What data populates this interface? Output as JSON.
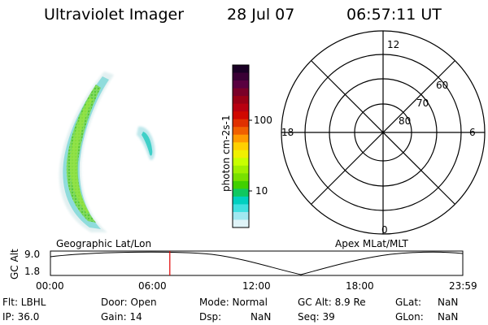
{
  "header": {
    "title": "Ultraviolet Imager",
    "date": "28 Jul 07",
    "time": "06:57:11 UT"
  },
  "colorbar": {
    "label": "photon cm-2s-1",
    "ticks": [
      "100",
      "10"
    ],
    "colors": [
      "#1a0025",
      "#3a0035",
      "#5a0040",
      "#7a0028",
      "#9a0015",
      "#b80010",
      "#d00800",
      "#e03000",
      "#f06000",
      "#ff9a00",
      "#ffd000",
      "#f0f000",
      "#c8ff00",
      "#a0f000",
      "#78e000",
      "#40d000",
      "#10c860",
      "#00d0c0",
      "#40e0e0",
      "#a0e8f0",
      "#e0f4f8"
    ]
  },
  "polar_plot": {
    "mlt_labels": [
      "12",
      "18",
      "6",
      "0"
    ],
    "lat_labels": [
      "60",
      "70",
      "80"
    ]
  },
  "timeline": {
    "left_label": "Geographic Lat/Lon",
    "right_label": "Apex MLat/MLT",
    "axis_title": "GC Alt",
    "y_ticks": [
      "9.0",
      "1.8"
    ],
    "x_ticks": [
      "00:00",
      "06:00",
      "12:00",
      "18:00",
      "23:59"
    ],
    "marker_time_hours": 6.95,
    "marker_color": "#e00000"
  },
  "status": {
    "flt": "Flt: LBHL",
    "ip": "IP: 36.0",
    "door": "Door: Open",
    "gain": "Gain: 14",
    "mode": "Mode: Normal",
    "dsp": "Dsp:",
    "dsp_val": "NaN",
    "gc_alt": "GC Alt: 8.9 Re",
    "seq": "Seq: 39",
    "glat": "GLat:",
    "glat_val": "NaN",
    "glon": "GLon:",
    "glon_val": "NaN"
  }
}
